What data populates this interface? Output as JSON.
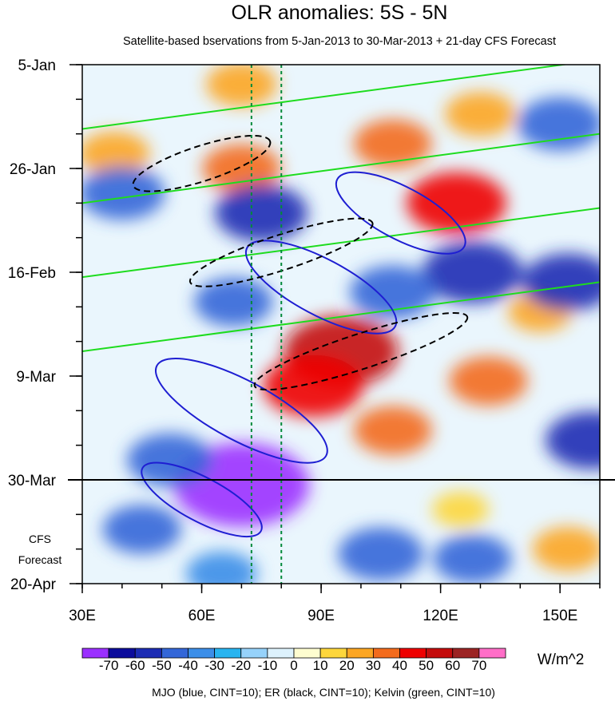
{
  "chart_data": {
    "type": "heatmap",
    "title": "OLR anomalies: 5S - 5N",
    "subtitle": "Satellite-based bservations from 5-Jan-2013 to 30-Mar-2013 + 21-day CFS Forecast",
    "x_axis": {
      "ticks": [
        {
          "value": 30,
          "label": "30E"
        },
        {
          "value": 60,
          "label": "60E"
        },
        {
          "value": 90,
          "label": "90E"
        },
        {
          "value": 120,
          "label": "120E"
        },
        {
          "value": 150,
          "label": "150E"
        }
      ],
      "minor_step": 10,
      "range": [
        30,
        160
      ]
    },
    "y_axis": {
      "ticks": [
        {
          "day": 0,
          "label": "5-Jan"
        },
        {
          "day": 21,
          "label": "26-Jan"
        },
        {
          "day": 42,
          "label": "16-Feb"
        },
        {
          "day": 63,
          "label": "9-Mar"
        },
        {
          "day": 84,
          "label": "30-Mar"
        },
        {
          "day": 105,
          "label": "20-Apr"
        }
      ],
      "minor_step_days": 7,
      "range_days": [
        0,
        105
      ],
      "reversed": true
    },
    "forecast_label": [
      "CFS",
      "Forecast"
    ],
    "forecast_start_day": 84,
    "reference_lines": [
      72.5,
      80
    ],
    "colorbar": {
      "unit": "W/m^2",
      "levels": [
        "-70",
        "-60",
        "-50",
        "-40",
        "-30",
        "-20",
        "-10",
        "0",
        "10",
        "20",
        "30",
        "40",
        "50",
        "60",
        "70"
      ],
      "colors": [
        "#9b30ff",
        "#0c0c9c",
        "#1c2cb4",
        "#3366d8",
        "#3c8ee8",
        "#28b4f0",
        "#96d2fa",
        "#ddf2fd",
        "#fefdd0",
        "#fdd63c",
        "#fca623",
        "#f36b1c",
        "#ee0000",
        "#c40c0c",
        "#9c2424",
        "#ff6ec8"
      ]
    },
    "footer": "MJO (blue, CINT=10); ER (black, CINT=10); Kelvin (green, CINT=10)",
    "series": [
      {
        "name": "MJO",
        "color": "#1e1ed2"
      },
      {
        "name": "ER",
        "color": "#000000"
      },
      {
        "name": "Kelvin",
        "color": "#1edc1e"
      }
    ],
    "anomaly_centers": [
      {
        "lon": 95,
        "day": 58,
        "value": 55
      },
      {
        "lon": 88,
        "day": 65,
        "value": 45
      },
      {
        "lon": 124,
        "day": 28,
        "value": 45
      },
      {
        "lon": 108,
        "day": 16,
        "value": 30
      },
      {
        "lon": 70,
        "day": 21,
        "value": 30
      },
      {
        "lon": 38,
        "day": 18,
        "value": 25
      },
      {
        "lon": 108,
        "day": 74,
        "value": 30
      },
      {
        "lon": 132,
        "day": 64,
        "value": 30
      },
      {
        "lon": 145,
        "day": 50,
        "value": 20
      },
      {
        "lon": 70,
        "day": 4,
        "value": 25
      },
      {
        "lon": 130,
        "day": 10,
        "value": 25
      },
      {
        "lon": 152,
        "day": 98,
        "value": 25
      },
      {
        "lon": 125,
        "day": 90,
        "value": 15
      },
      {
        "lon": 70,
        "day": 85,
        "value": -70
      },
      {
        "lon": 52,
        "day": 80,
        "value": -35
      },
      {
        "lon": 45,
        "day": 94,
        "value": -30
      },
      {
        "lon": 105,
        "day": 99,
        "value": -35
      },
      {
        "lon": 65,
        "day": 103,
        "value": -25
      },
      {
        "lon": 128,
        "day": 100,
        "value": -30
      },
      {
        "lon": 75,
        "day": 30,
        "value": -40
      },
      {
        "lon": 40,
        "day": 26,
        "value": -35
      },
      {
        "lon": 128,
        "day": 42,
        "value": -45
      },
      {
        "lon": 68,
        "day": 48,
        "value": -30
      },
      {
        "lon": 152,
        "day": 44,
        "value": -40
      },
      {
        "lon": 150,
        "day": 12,
        "value": -35
      },
      {
        "lon": 108,
        "day": 46,
        "value": -35
      },
      {
        "lon": 158,
        "day": 76,
        "value": -40
      }
    ]
  }
}
